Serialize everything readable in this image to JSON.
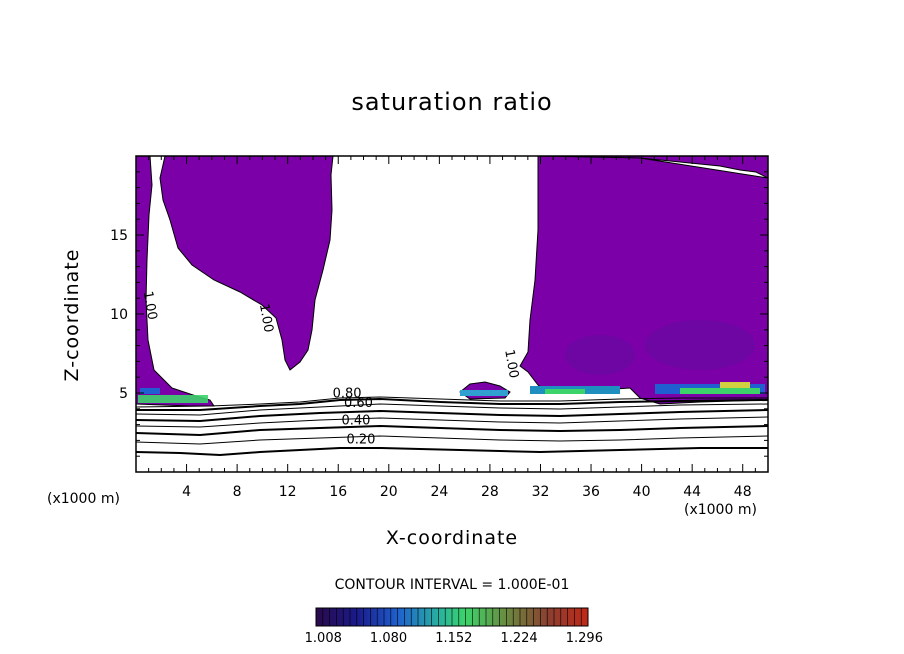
{
  "chart_data": {
    "type": "contour",
    "title": "saturation ratio",
    "xlabel": "X-coordinate",
    "ylabel": "Z-coordinate",
    "x_unit_label": "(x1000 m)",
    "xlim": [
      0,
      50
    ],
    "ylim": [
      0,
      20
    ],
    "x_ticks": [
      4,
      8,
      12,
      16,
      20,
      24,
      28,
      32,
      36,
      40,
      44,
      48
    ],
    "y_ticks": [
      5,
      10,
      15
    ],
    "contour_interval_text": "CONTOUR INTERVAL = 1.000E-01",
    "contour_labels": [
      {
        "text": "0.20",
        "x": 17.8,
        "y": 1.8
      },
      {
        "text": "0.40",
        "x": 17.4,
        "y": 3.0
      },
      {
        "text": "0.60",
        "x": 17.6,
        "y": 4.1
      },
      {
        "text": "0.80",
        "x": 16.7,
        "y": 4.7
      },
      {
        "text": "1.00",
        "x": 0.8,
        "y": 10.5
      },
      {
        "text": "1.00",
        "x": 10.0,
        "y": 9.7
      },
      {
        "text": "1.00",
        "x": 29.4,
        "y": 6.8
      }
    ],
    "colorbar": {
      "tick_labels": [
        "1.008",
        "1.080",
        "1.152",
        "1.224",
        "1.296"
      ],
      "range": [
        1.0,
        1.3
      ]
    },
    "colors": {
      "supersaturation_fill": "#7b00a8",
      "low_colorbar": "#2a0a5a",
      "mid_colorbar": "#3cd46a",
      "high_colorbar": "#b03020"
    }
  }
}
